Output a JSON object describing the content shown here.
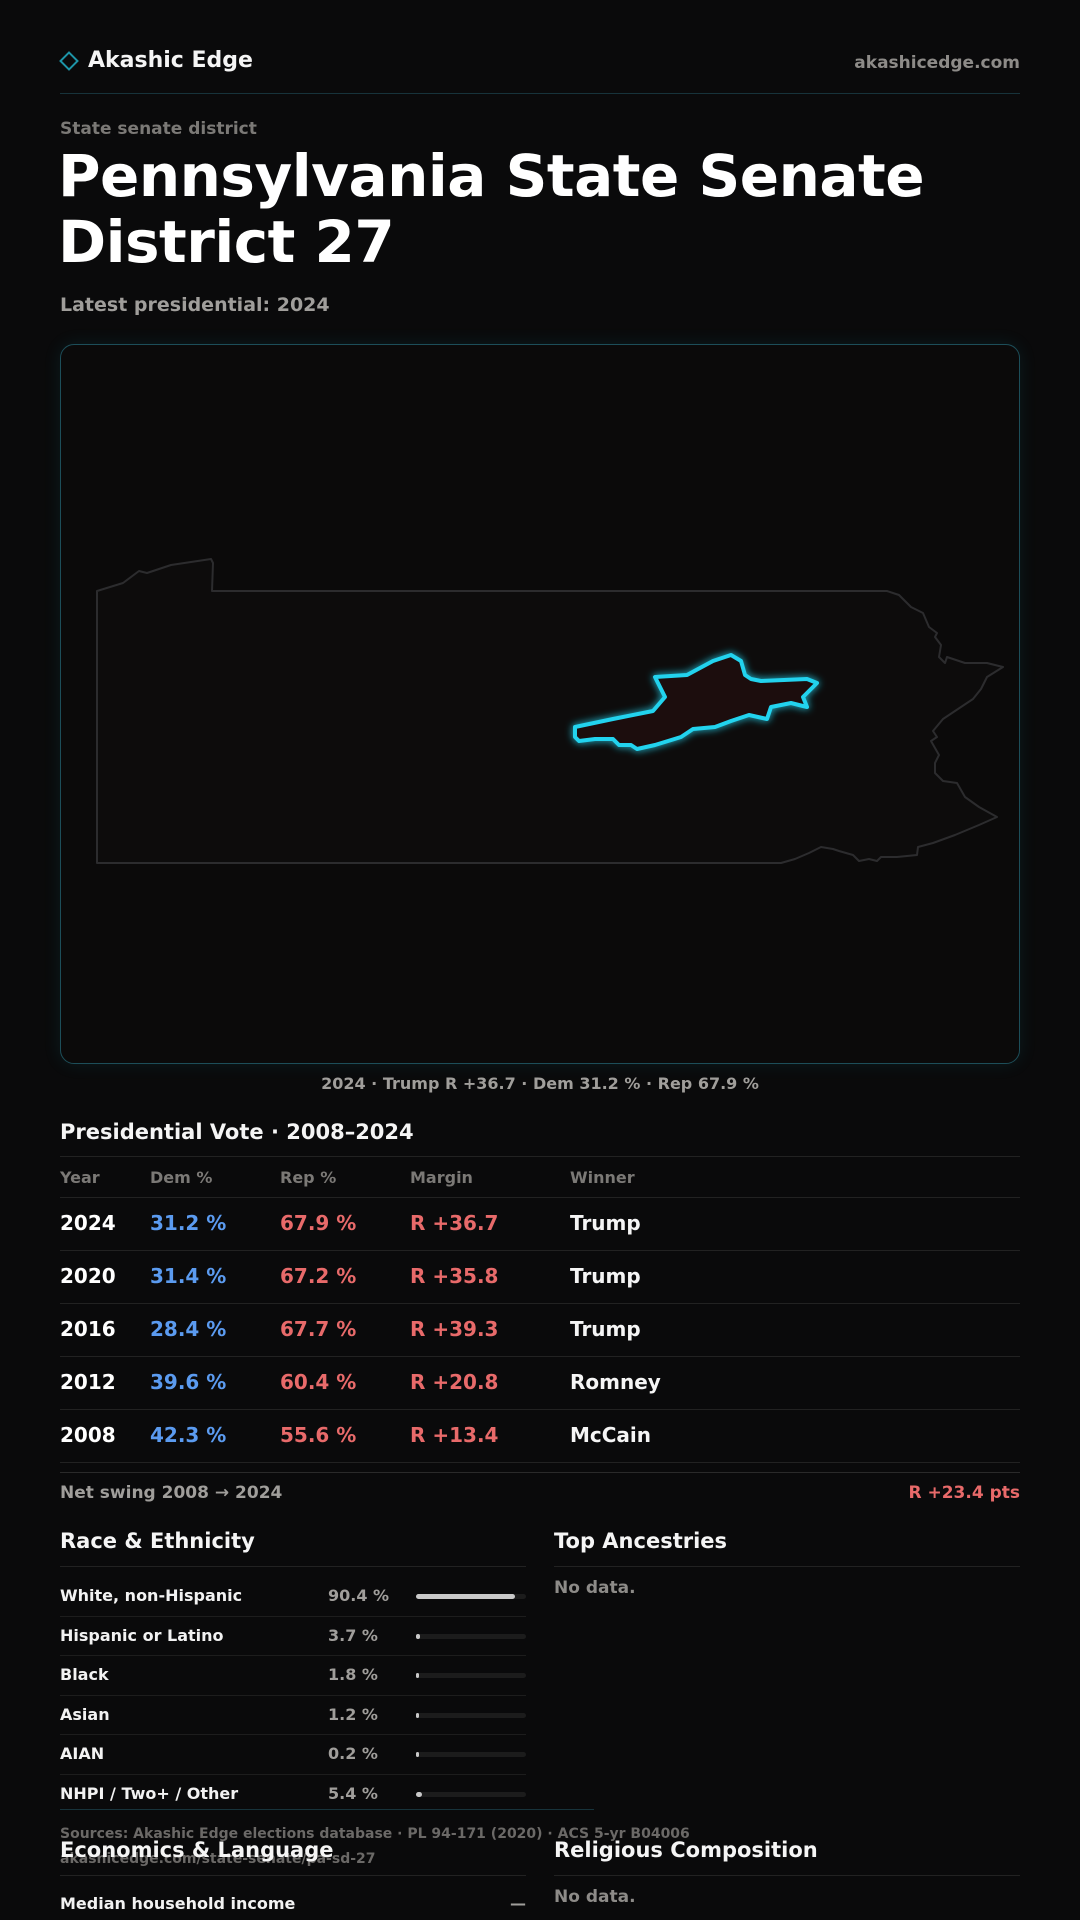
{
  "header": {
    "brand": "Akashic Edge",
    "site": "akashicedge.com"
  },
  "page": {
    "kicker": "State senate district",
    "title": "Pennsylvania State Senate District 27",
    "latest": "Latest presidential: 2024"
  },
  "map": {
    "caption": "2024 · Trump R +36.7 · Dem 31.2 % · Rep 67.9 %",
    "highlight_color": "#22d3ee"
  },
  "presidential": {
    "title": "Presidential Vote · 2008–2024",
    "columns": {
      "year": "Year",
      "dem": "Dem %",
      "rep": "Rep %",
      "margin": "Margin",
      "winner": "Winner"
    },
    "rows": [
      {
        "year": "2024",
        "dem": "31.2 %",
        "rep": "67.9 %",
        "margin": "R +36.7",
        "winner": "Trump"
      },
      {
        "year": "2020",
        "dem": "31.4 %",
        "rep": "67.2 %",
        "margin": "R +35.8",
        "winner": "Trump"
      },
      {
        "year": "2016",
        "dem": "28.4 %",
        "rep": "67.7 %",
        "margin": "R +39.3",
        "winner": "Trump"
      },
      {
        "year": "2012",
        "dem": "39.6 %",
        "rep": "60.4 %",
        "margin": "R +20.8",
        "winner": "Romney"
      },
      {
        "year": "2008",
        "dem": "42.3 %",
        "rep": "55.6 %",
        "margin": "R +13.4",
        "winner": "McCain"
      }
    ],
    "swing_label": "Net swing 2008 → 2024",
    "swing_value": "R +23.4 pts",
    "dem_color": "#5b9bf0",
    "rep_color": "#e86a6a"
  },
  "race": {
    "title": "Race & Ethnicity",
    "rows": [
      {
        "label": "White, non-Hispanic",
        "pct": "90.4 %",
        "share": 0.904
      },
      {
        "label": "Hispanic or Latino",
        "pct": "3.7 %",
        "share": 0.037
      },
      {
        "label": "Black",
        "pct": "1.8 %",
        "share": 0.018
      },
      {
        "label": "Asian",
        "pct": "1.2 %",
        "share": 0.012
      },
      {
        "label": "AIAN",
        "pct": "0.2 %",
        "share": 0.002
      },
      {
        "label": "NHPI / Two+ / Other",
        "pct": "5.4 %",
        "share": 0.054
      }
    ]
  },
  "ancestries": {
    "title": "Top Ancestries",
    "empty": "No data."
  },
  "footer": {
    "sources": "Sources: Akashic Edge elections database · PL 94-171 (2020) · ACS 5-yr B04006",
    "url": "akashicedge.com/state-senate/pa-sd-27"
  },
  "economics": {
    "title": "Economics & Language",
    "rows": [
      {
        "label": "Median household income",
        "value": "—"
      }
    ]
  },
  "religion": {
    "title": "Religious Composition",
    "empty": "No data."
  }
}
